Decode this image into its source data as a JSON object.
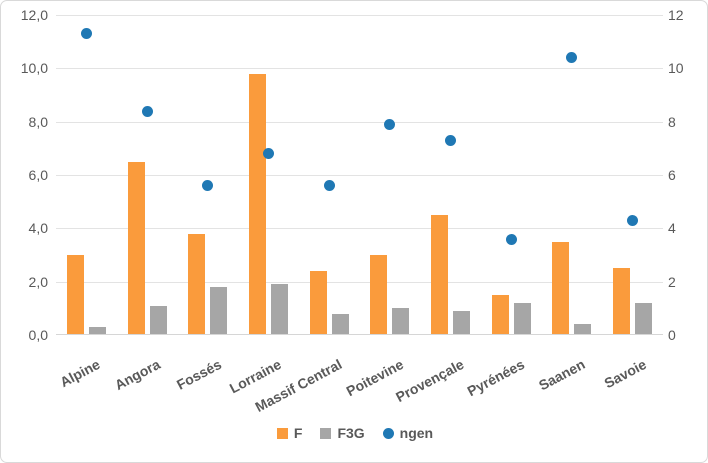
{
  "chart_data": {
    "type": "bar",
    "subtype": "clustered-bar-with-scatter-overlay",
    "title": "",
    "categories": [
      "Alpine",
      "Angora",
      "Fossés",
      "Lorraine",
      "Massif Central",
      "Poitevine",
      "Provençale",
      "Pyrénées",
      "Saanen",
      "Savoie"
    ],
    "series": [
      {
        "name": "F",
        "type": "bar",
        "axis": "left",
        "color": "#FA9B3C",
        "values": [
          3.0,
          6.5,
          3.8,
          9.8,
          2.4,
          3.0,
          4.5,
          1.5,
          3.5,
          2.5
        ]
      },
      {
        "name": "F3G",
        "type": "bar",
        "axis": "left",
        "color": "#A6A6A6",
        "values": [
          0.3,
          1.1,
          1.8,
          1.9,
          0.8,
          1.0,
          0.9,
          1.2,
          0.4,
          1.2
        ]
      },
      {
        "name": "ngen",
        "type": "scatter",
        "axis": "right",
        "color": "#1F78B4",
        "values": [
          11.3,
          8.4,
          5.6,
          6.8,
          5.6,
          7.9,
          7.3,
          3.6,
          10.4,
          4.3
        ]
      }
    ],
    "left_axis": {
      "min": 0,
      "max": 12,
      "step": 2,
      "tick_labels": [
        "0,0",
        "2,0",
        "4,0",
        "6,0",
        "8,0",
        "10,0",
        "12,0"
      ]
    },
    "right_axis": {
      "min": 0,
      "max": 12,
      "step": 2,
      "tick_labels": [
        "0",
        "2",
        "4",
        "6",
        "8",
        "10",
        "12"
      ]
    },
    "legend": {
      "position": "bottom",
      "entries": [
        "F",
        "F3G",
        "ngen"
      ]
    },
    "grid": true,
    "colors": {
      "axis_text": "#595959",
      "gridline": "#E3E3E3",
      "axis_line": "#D6D6D6",
      "frame_border": "#D9D9D9",
      "background": "#FFFFFF"
    }
  }
}
